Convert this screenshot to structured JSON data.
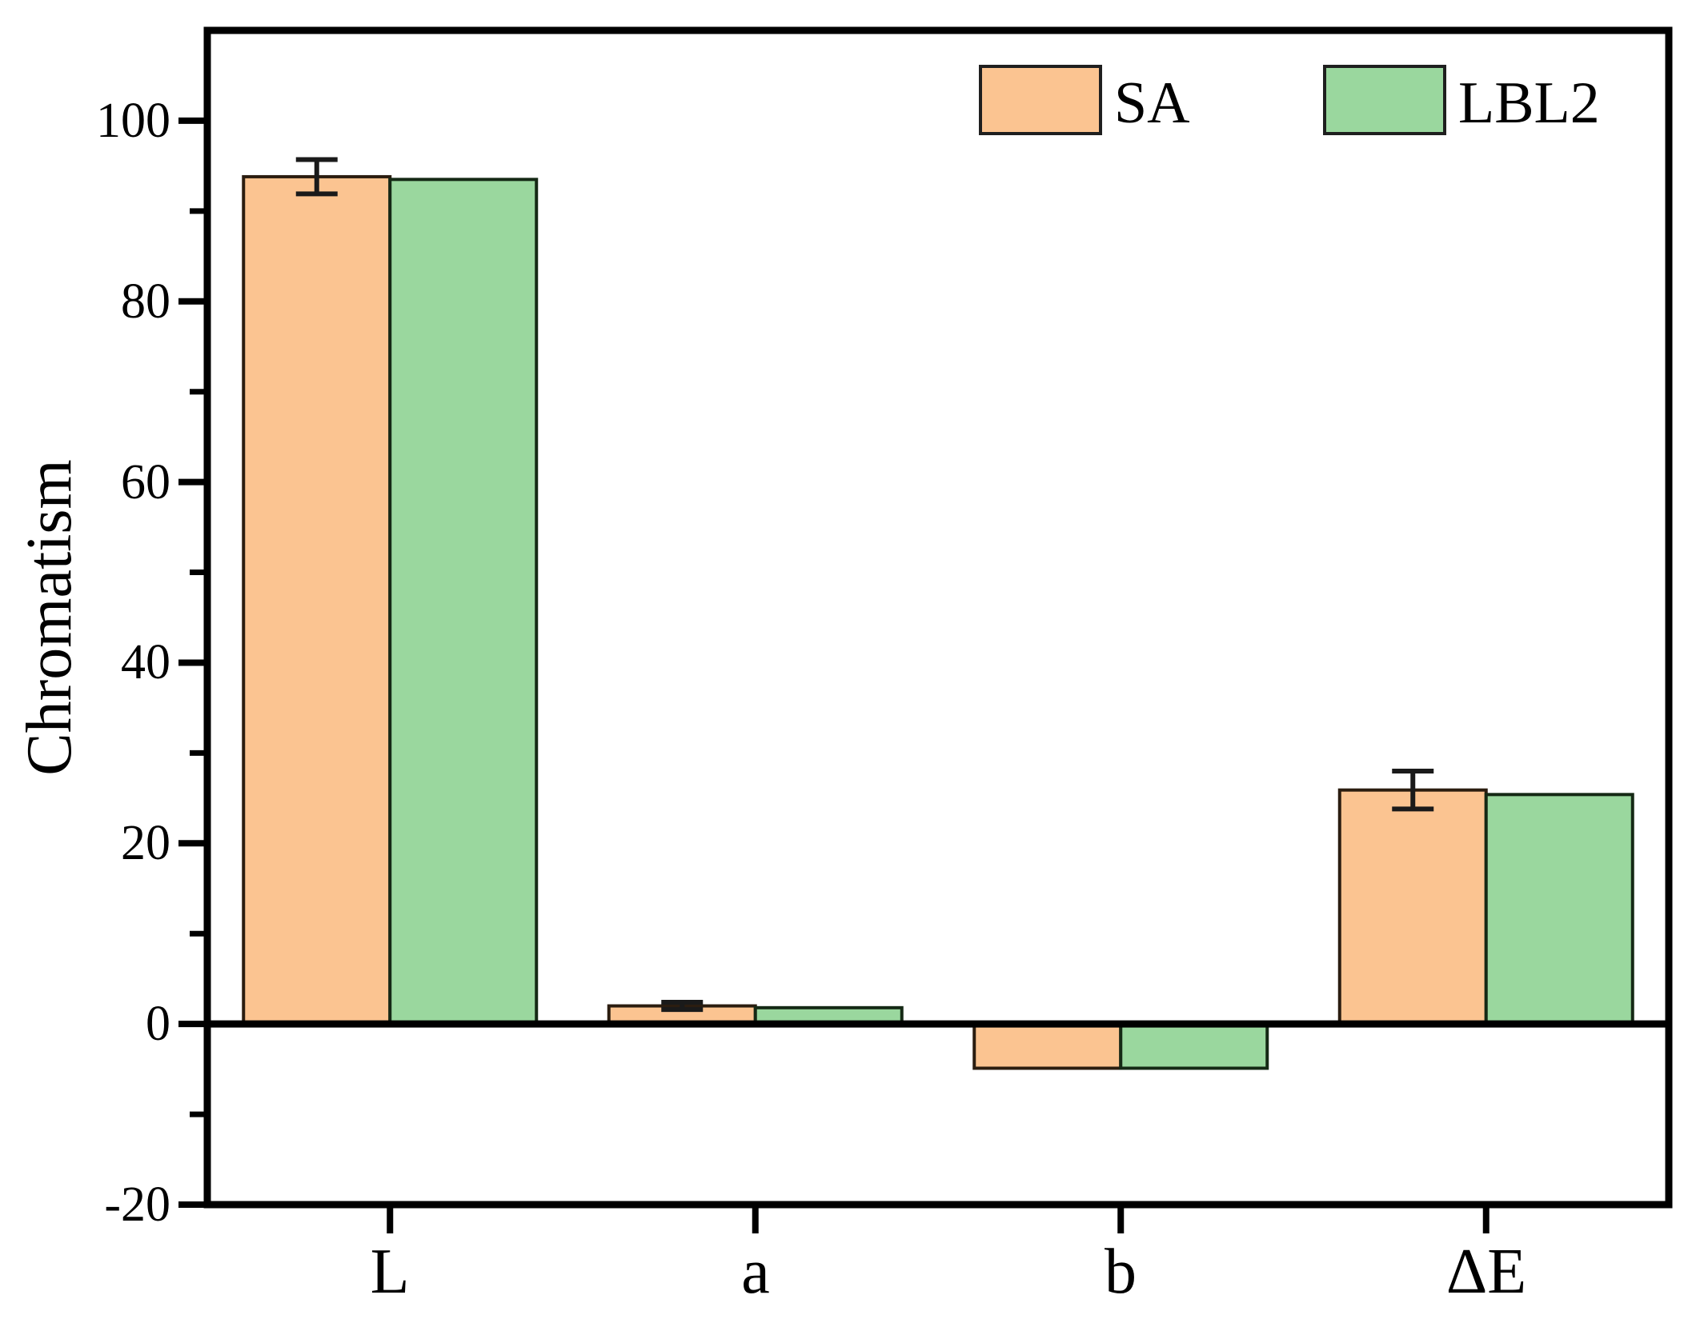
{
  "chart_data": {
    "type": "bar",
    "title": "",
    "xlabel": "",
    "ylabel": "Chromatism",
    "categories": [
      "L",
      "a",
      "b",
      "ΔE"
    ],
    "series": [
      {
        "name": "SA",
        "color": "#FBC491",
        "edge_color": "#2B1D10",
        "values": [
          93.8,
          2.0,
          -4.9,
          25.9
        ],
        "errors": [
          1.9,
          0.4,
          0,
          2.1
        ]
      },
      {
        "name": "LBL2",
        "color": "#9AD79E",
        "edge_color": "#152915",
        "values": [
          93.5,
          1.8,
          -4.9,
          25.4
        ],
        "errors": [
          0,
          0,
          0,
          0
        ]
      }
    ],
    "ylim": [
      -20,
      110
    ],
    "yticks": [
      100,
      80,
      60,
      40,
      20,
      0,
      -20
    ],
    "ytick_labels": [
      "100",
      "80",
      "60",
      "40",
      "20",
      "0",
      "-20"
    ],
    "minor_yticks": [
      90,
      70,
      50,
      30,
      10,
      -10
    ],
    "baseline": 0,
    "grid": false,
    "legend_position": "top-right",
    "axis_color": "#000000",
    "background": "#FFFFFF"
  }
}
